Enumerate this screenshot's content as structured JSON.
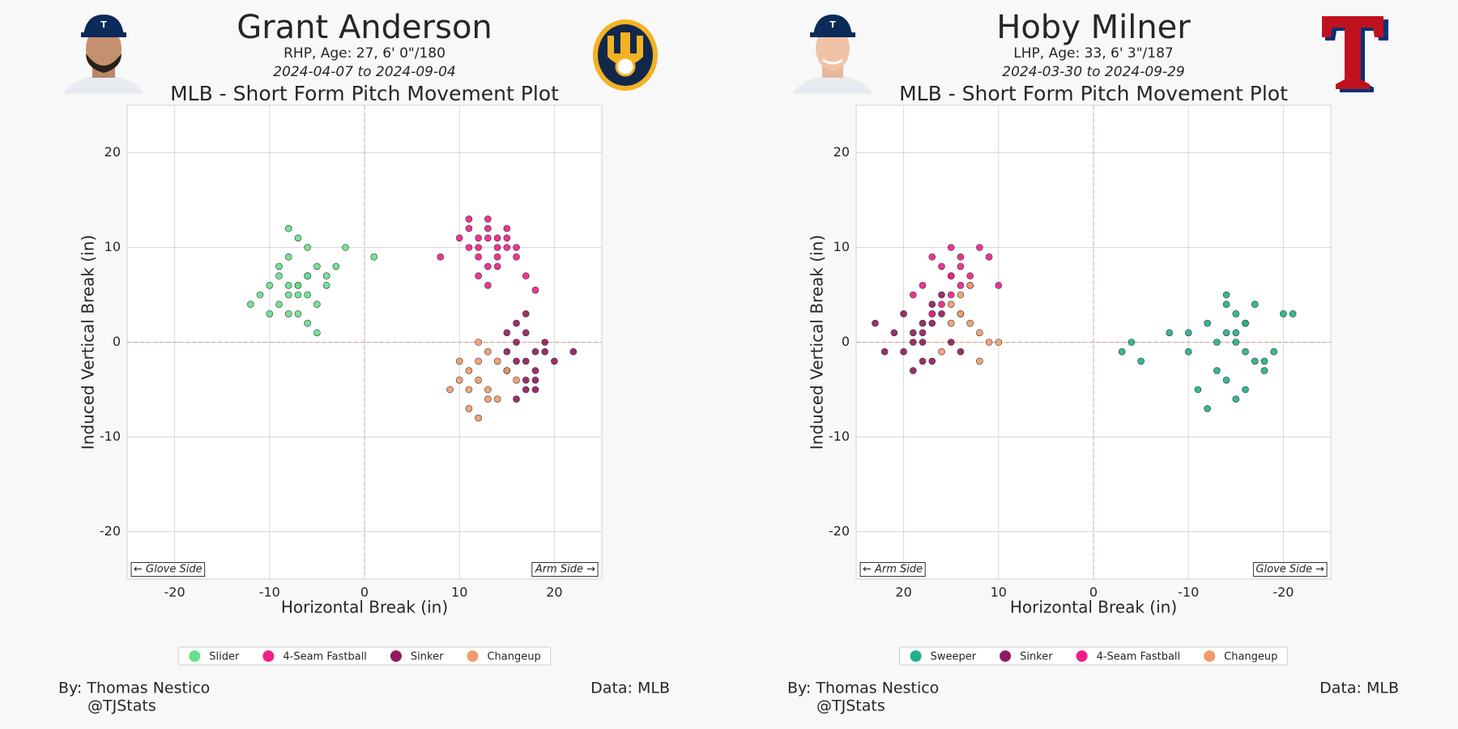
{
  "chart_data": [
    {
      "type": "scatter",
      "title": "Grant Anderson",
      "subtitle": "RHP, Age: 27, 6' 0\"/180",
      "date_range": "2024-04-07 to 2024-09-04",
      "plot_title": "MLB - Short Form Pitch Movement Plot",
      "xlabel": "Horizontal Break (in)",
      "ylabel": "Induced Vertical Break (in)",
      "xlim": [
        -25,
        25
      ],
      "ylim": [
        -25,
        25
      ],
      "xticks": [
        -20,
        -10,
        0,
        10,
        20
      ],
      "yticks": [
        -20,
        -10,
        0,
        10,
        20
      ],
      "grid": true,
      "annotations": [
        "← Glove Side",
        "Arm Side →"
      ],
      "credit": [
        "By: Thomas Nestico",
        "@TJStats"
      ],
      "source": "Data: MLB",
      "series": [
        {
          "name": "Slider",
          "color": "#67e08b",
          "x": [
            -7,
            -8,
            -6,
            -9,
            -10,
            -5,
            -7,
            -8,
            -6,
            -11,
            -4,
            -7,
            -9,
            -6,
            -8,
            -5,
            -3,
            -10,
            -7,
            -6,
            -8,
            -2,
            1,
            -9,
            -5,
            -7,
            -12,
            -4,
            -6,
            -8
          ],
          "y": [
            6,
            5,
            7,
            4,
            6,
            8,
            3,
            9,
            5,
            5,
            7,
            6,
            7,
            10,
            12,
            4,
            8,
            3,
            11,
            2,
            6,
            10,
            9,
            8,
            1,
            5,
            4,
            6,
            7,
            3
          ]
        },
        {
          "name": "4-Seam Fastball",
          "color": "#ee1f86",
          "x": [
            12,
            13,
            14,
            11,
            15,
            13,
            12,
            14,
            16,
            10,
            13,
            15,
            12,
            14,
            11,
            16,
            13,
            17,
            8,
            18,
            12,
            14,
            13,
            15,
            11
          ],
          "y": [
            10,
            11,
            9,
            12,
            10,
            8,
            9,
            11,
            10,
            11,
            13,
            12,
            7,
            8,
            10,
            9,
            12,
            7,
            9,
            5.5,
            11,
            10,
            6,
            11,
            13
          ]
        },
        {
          "name": "Sinker",
          "color": "#8e1b5a",
          "x": [
            17,
            16,
            18,
            15,
            19,
            17,
            16,
            18,
            20,
            15,
            17,
            18,
            16,
            19,
            22,
            17,
            16,
            18,
            15,
            17
          ],
          "y": [
            -2,
            0,
            -3,
            1,
            -1,
            -4,
            2,
            -5,
            -2,
            -3,
            1,
            -1,
            -6,
            0,
            -1,
            3,
            -2,
            -4,
            -1,
            -5
          ]
        },
        {
          "name": "Changeup",
          "color": "#f29a6b",
          "x": [
            12,
            11,
            13,
            10,
            14,
            12,
            9,
            13,
            11,
            15,
            12,
            10,
            14,
            13,
            11,
            16,
            12
          ],
          "y": [
            -4,
            -3,
            -5,
            -2,
            -6,
            -8,
            -5,
            -1,
            -7,
            -3,
            0,
            -4,
            -2,
            -6,
            -5,
            -4,
            -2
          ]
        }
      ]
    },
    {
      "type": "scatter",
      "title": "Hoby Milner",
      "subtitle": "LHP, Age: 33, 6' 3\"/187",
      "date_range": "2024-03-30 to 2024-09-29",
      "plot_title": "MLB - Short Form Pitch Movement Plot",
      "xlabel": "Horizontal Break (in)",
      "ylabel": "Induced Vertical Break (in)",
      "xlim": [
        25,
        -25
      ],
      "ylim": [
        -25,
        25
      ],
      "xticks": [
        20,
        10,
        0,
        -10,
        -20
      ],
      "yticks": [
        -20,
        -10,
        0,
        10,
        20
      ],
      "grid": true,
      "annotations": [
        "← Arm Side",
        "Glove Side →"
      ],
      "credit": [
        "By: Thomas Nestico",
        "@TJStats"
      ],
      "source": "Data: MLB",
      "series": [
        {
          "name": "Sweeper",
          "color": "#1fb08c",
          "x": [
            -15,
            -14,
            -16,
            -12,
            -18,
            -15,
            -13,
            -17,
            -10,
            -19,
            -14,
            -16,
            -11,
            -20,
            -15,
            -13,
            -17,
            -3,
            -4,
            -5,
            -8,
            -14,
            -16,
            -12,
            -18,
            -15,
            -21,
            -10,
            -16,
            -14
          ],
          "y": [
            0,
            1,
            -1,
            2,
            -2,
            3,
            -3,
            4,
            1,
            -1,
            -4,
            2,
            -5,
            3,
            -6,
            0,
            -2,
            -1,
            0,
            -2,
            1,
            4,
            2,
            -7,
            -3,
            1,
            3,
            -1,
            -5,
            5
          ]
        },
        {
          "name": "Sinker",
          "color": "#8e1b5a",
          "x": [
            18,
            19,
            17,
            20,
            16,
            18,
            21,
            17,
            19,
            15,
            18,
            22,
            16,
            20,
            17,
            19,
            23,
            14,
            18,
            17
          ],
          "y": [
            1,
            0,
            2,
            -1,
            3,
            -2,
            1,
            4,
            -3,
            0,
            2,
            -1,
            5,
            3,
            -2,
            1,
            2,
            -1,
            0,
            3
          ]
        },
        {
          "name": "4-Seam Fastball",
          "color": "#ee1f86",
          "x": [
            15,
            16,
            14,
            17,
            13,
            15,
            18,
            12,
            16,
            14,
            11,
            19,
            15,
            13,
            17,
            10,
            15,
            14
          ],
          "y": [
            7,
            8,
            6,
            9,
            7,
            5,
            6,
            10,
            4,
            8,
            9,
            5,
            10,
            6,
            3,
            6,
            7,
            9
          ]
        },
        {
          "name": "Changeup",
          "color": "#f29a6b",
          "x": [
            14,
            13,
            15,
            12,
            14,
            16,
            11,
            13,
            15,
            12,
            10,
            14
          ],
          "y": [
            3,
            2,
            4,
            1,
            5,
            -1,
            0,
            6,
            2,
            -2,
            0,
            3
          ]
        }
      ]
    }
  ]
}
